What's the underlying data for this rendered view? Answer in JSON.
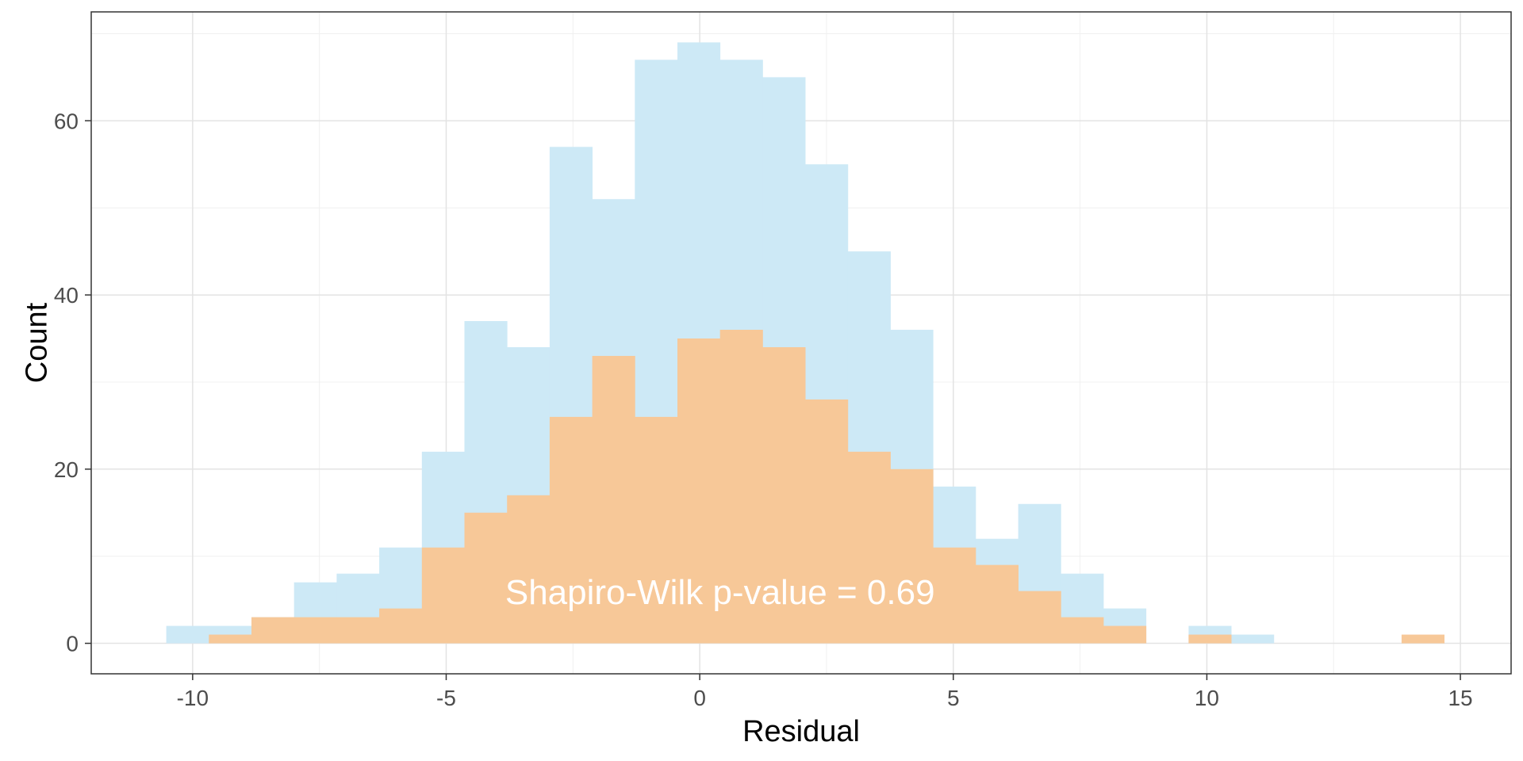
{
  "chart_data": {
    "type": "bar",
    "subtype": "overlapping-histogram",
    "xlabel": "Residual",
    "ylabel": "Count",
    "xlim": [
      -12,
      16
    ],
    "ylim": [
      -3.5,
      72.5
    ],
    "x_ticks": [
      -10,
      -5,
      0,
      5,
      10,
      15
    ],
    "y_ticks": [
      0,
      20,
      40,
      60
    ],
    "grid": true,
    "bin_edges": [
      -10.52,
      -9.68,
      -8.84,
      -8.0,
      -7.16,
      -6.32,
      -5.48,
      -4.64,
      -3.8,
      -2.96,
      -2.12,
      -1.28,
      -0.44,
      0.4,
      1.24,
      2.08,
      2.92,
      3.76,
      4.6,
      5.44,
      6.28,
      7.12,
      7.96,
      8.8,
      9.64,
      10.48,
      11.32,
      12.16,
      13.0,
      13.84,
      14.68
    ],
    "series": [
      {
        "color": "#cde9f6",
        "values": [
          2,
          2,
          3,
          7,
          8,
          11,
          22,
          37,
          34,
          57,
          51,
          67,
          69,
          67,
          65,
          55,
          45,
          36,
          18,
          12,
          16,
          8,
          4,
          0,
          2,
          1,
          0,
          0,
          0,
          0
        ]
      },
      {
        "color": "#f7c898",
        "values": [
          0,
          1,
          3,
          3,
          3,
          4,
          11,
          15,
          17,
          26,
          33,
          26,
          35,
          36,
          34,
          28,
          22,
          20,
          11,
          9,
          6,
          3,
          2,
          0,
          1,
          0,
          0,
          0,
          0,
          1
        ]
      }
    ],
    "annotation": {
      "text": "Shapiro-Wilk p-value = 0.69",
      "x": 0.4,
      "y": 4.5
    }
  }
}
